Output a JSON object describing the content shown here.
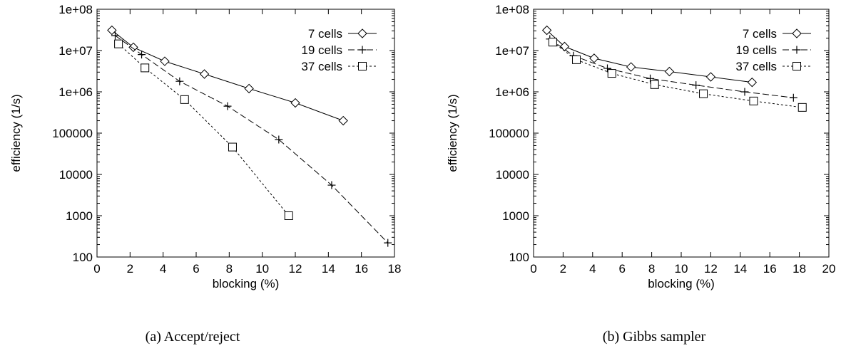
{
  "chart_data": [
    {
      "type": "line",
      "caption": "(a) Accept/reject",
      "xlabel": "blocking (%)",
      "ylabel": "efficiency (1/s)",
      "xlim": [
        0,
        18
      ],
      "ylim": [
        100,
        100000000
      ],
      "yscale": "log",
      "xticks": [
        "0",
        "2",
        "4",
        "6",
        "8",
        "10",
        "12",
        "14",
        "16",
        "18"
      ],
      "yticks": [
        "100",
        "1000",
        "10000",
        "100000",
        "1e+06",
        "1e+07",
        "1e+08"
      ],
      "grid": false,
      "legend_position": "top-right",
      "series": [
        {
          "name": "7 cells",
          "marker": "diamond",
          "line": "solid",
          "points": [
            [
              0.9,
              31000000
            ],
            [
              2.2,
              12000000
            ],
            [
              4.1,
              5500000
            ],
            [
              6.5,
              2700000
            ],
            [
              9.2,
              1200000
            ],
            [
              12.0,
              540000
            ],
            [
              14.9,
              200000
            ]
          ]
        },
        {
          "name": "19 cells",
          "marker": "plus",
          "line": "dashed",
          "points": [
            [
              1.1,
              23000000
            ],
            [
              2.7,
              8000000
            ],
            [
              5.0,
              1800000
            ],
            [
              7.9,
              450000
            ],
            [
              11.0,
              70000
            ],
            [
              14.2,
              5500
            ],
            [
              17.6,
              220
            ]
          ]
        },
        {
          "name": "37 cells",
          "marker": "square",
          "line": "dotted",
          "points": [
            [
              1.3,
              14500000
            ],
            [
              2.9,
              3800000
            ],
            [
              5.3,
              650000
            ],
            [
              8.2,
              46000
            ],
            [
              11.6,
              1000
            ]
          ]
        }
      ]
    },
    {
      "type": "line",
      "caption": "(b) Gibbs sampler",
      "xlabel": "blocking (%)",
      "ylabel": "efficiency (1/s)",
      "xlim": [
        0,
        20
      ],
      "ylim": [
        100,
        100000000
      ],
      "yscale": "log",
      "xticks": [
        "0",
        "2",
        "4",
        "6",
        "8",
        "10",
        "12",
        "14",
        "16",
        "18",
        "20"
      ],
      "yticks": [
        "100",
        "1000",
        "10000",
        "100000",
        "1e+06",
        "1e+07",
        "1e+08"
      ],
      "grid": false,
      "legend_position": "top-right",
      "series": [
        {
          "name": "7 cells",
          "marker": "diamond",
          "line": "solid",
          "points": [
            [
              0.9,
              31000000
            ],
            [
              2.1,
              12500000
            ],
            [
              4.1,
              6500000
            ],
            [
              6.6,
              4000000
            ],
            [
              9.2,
              3100000
            ],
            [
              12.0,
              2300000
            ],
            [
              14.8,
              1700000
            ]
          ]
        },
        {
          "name": "19 cells",
          "marker": "plus",
          "line": "dashed",
          "points": [
            [
              1.1,
              19000000
            ],
            [
              2.7,
              7500000
            ],
            [
              5.0,
              3700000
            ],
            [
              7.9,
              2100000
            ],
            [
              11.0,
              1450000
            ],
            [
              14.3,
              1000000
            ],
            [
              17.6,
              720000
            ]
          ]
        },
        {
          "name": "37 cells",
          "marker": "square",
          "line": "dotted",
          "points": [
            [
              1.3,
              16000000
            ],
            [
              2.9,
              6000000
            ],
            [
              5.3,
              2800000
            ],
            [
              8.2,
              1500000
            ],
            [
              11.5,
              900000
            ],
            [
              14.9,
              600000
            ],
            [
              18.2,
              420000
            ]
          ]
        }
      ]
    }
  ]
}
